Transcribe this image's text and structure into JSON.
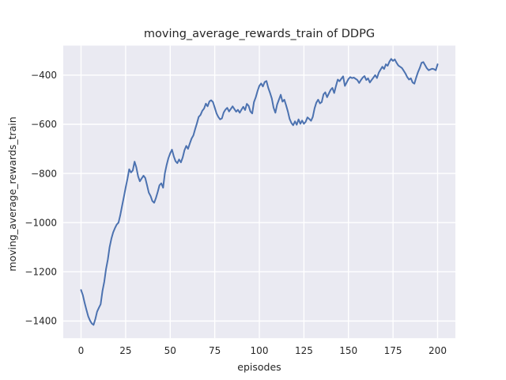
{
  "chart_data": {
    "type": "line",
    "title": "moving_average_rewards_train of DDPG",
    "xlabel": "episodes",
    "ylabel": "moving_average_rewards_train",
    "grid": true,
    "legend_position": "none",
    "xlim": [
      -10,
      210
    ],
    "ylim": [
      -1470,
      -280
    ],
    "x_ticks": [
      {
        "value": 0,
        "label": "0"
      },
      {
        "value": 25,
        "label": "25"
      },
      {
        "value": 50,
        "label": "50"
      },
      {
        "value": 75,
        "label": "75"
      },
      {
        "value": 100,
        "label": "100"
      },
      {
        "value": 125,
        "label": "125"
      },
      {
        "value": 150,
        "label": "150"
      },
      {
        "value": 175,
        "label": "175"
      },
      {
        "value": 200,
        "label": "200"
      }
    ],
    "y_ticks": [
      {
        "value": -400,
        "label": "−400"
      },
      {
        "value": -600,
        "label": "−600"
      },
      {
        "value": -800,
        "label": "−800"
      },
      {
        "value": -1000,
        "label": "−1000"
      },
      {
        "value": -1200,
        "label": "−1200"
      },
      {
        "value": -1400,
        "label": "−1400"
      }
    ],
    "colors": {
      "plot_background": "#eaeaf2",
      "figure_background": "#ffffff",
      "grid": "#ffffff",
      "text": "#262626",
      "series": "#4c72b0"
    },
    "series": [
      {
        "name": "moving_average_rewards_train",
        "color": "#4c72b0",
        "points": [
          [
            0,
            -1274
          ],
          [
            1,
            -1295
          ],
          [
            2,
            -1327
          ],
          [
            3,
            -1354
          ],
          [
            4,
            -1381
          ],
          [
            5,
            -1398
          ],
          [
            6,
            -1410
          ],
          [
            7,
            -1416
          ],
          [
            8,
            -1392
          ],
          [
            9,
            -1362
          ],
          [
            10,
            -1346
          ],
          [
            11,
            -1332
          ],
          [
            12,
            -1278
          ],
          [
            13,
            -1240
          ],
          [
            14,
            -1189
          ],
          [
            15,
            -1150
          ],
          [
            16,
            -1100
          ],
          [
            17,
            -1065
          ],
          [
            18,
            -1040
          ],
          [
            19,
            -1022
          ],
          [
            20,
            -1008
          ],
          [
            21,
            -1000
          ],
          [
            22,
            -970
          ],
          [
            23,
            -932
          ],
          [
            24,
            -895
          ],
          [
            25,
            -858
          ],
          [
            26,
            -822
          ],
          [
            27,
            -783
          ],
          [
            28,
            -796
          ],
          [
            29,
            -788
          ],
          [
            30,
            -752
          ],
          [
            31,
            -775
          ],
          [
            32,
            -812
          ],
          [
            33,
            -832
          ],
          [
            34,
            -820
          ],
          [
            35,
            -809
          ],
          [
            36,
            -818
          ],
          [
            37,
            -848
          ],
          [
            38,
            -878
          ],
          [
            39,
            -892
          ],
          [
            40,
            -912
          ],
          [
            41,
            -919
          ],
          [
            42,
            -900
          ],
          [
            43,
            -875
          ],
          [
            44,
            -848
          ],
          [
            45,
            -840
          ],
          [
            46,
            -858
          ],
          [
            47,
            -800
          ],
          [
            48,
            -765
          ],
          [
            49,
            -738
          ],
          [
            50,
            -718
          ],
          [
            51,
            -703
          ],
          [
            52,
            -730
          ],
          [
            53,
            -750
          ],
          [
            54,
            -758
          ],
          [
            55,
            -743
          ],
          [
            56,
            -755
          ],
          [
            57,
            -735
          ],
          [
            58,
            -706
          ],
          [
            59,
            -688
          ],
          [
            60,
            -700
          ],
          [
            61,
            -678
          ],
          [
            62,
            -658
          ],
          [
            63,
            -645
          ],
          [
            64,
            -620
          ],
          [
            65,
            -596
          ],
          [
            66,
            -570
          ],
          [
            67,
            -562
          ],
          [
            68,
            -545
          ],
          [
            69,
            -536
          ],
          [
            70,
            -516
          ],
          [
            71,
            -527
          ],
          [
            72,
            -507
          ],
          [
            73,
            -502
          ],
          [
            74,
            -510
          ],
          [
            75,
            -532
          ],
          [
            76,
            -556
          ],
          [
            77,
            -570
          ],
          [
            78,
            -580
          ],
          [
            79,
            -576
          ],
          [
            80,
            -552
          ],
          [
            81,
            -540
          ],
          [
            82,
            -533
          ],
          [
            83,
            -548
          ],
          [
            84,
            -538
          ],
          [
            85,
            -527
          ],
          [
            86,
            -538
          ],
          [
            87,
            -549
          ],
          [
            88,
            -541
          ],
          [
            89,
            -553
          ],
          [
            90,
            -540
          ],
          [
            91,
            -529
          ],
          [
            92,
            -542
          ],
          [
            93,
            -517
          ],
          [
            94,
            -525
          ],
          [
            95,
            -548
          ],
          [
            96,
            -556
          ],
          [
            97,
            -510
          ],
          [
            98,
            -490
          ],
          [
            99,
            -465
          ],
          [
            100,
            -444
          ],
          [
            101,
            -434
          ],
          [
            102,
            -446
          ],
          [
            103,
            -428
          ],
          [
            104,
            -424
          ],
          [
            105,
            -452
          ],
          [
            106,
            -472
          ],
          [
            107,
            -495
          ],
          [
            108,
            -532
          ],
          [
            109,
            -553
          ],
          [
            110,
            -520
          ],
          [
            111,
            -500
          ],
          [
            112,
            -480
          ],
          [
            113,
            -508
          ],
          [
            114,
            -500
          ],
          [
            115,
            -522
          ],
          [
            116,
            -548
          ],
          [
            117,
            -578
          ],
          [
            118,
            -595
          ],
          [
            119,
            -604
          ],
          [
            120,
            -588
          ],
          [
            121,
            -602
          ],
          [
            122,
            -580
          ],
          [
            123,
            -598
          ],
          [
            124,
            -585
          ],
          [
            125,
            -598
          ],
          [
            126,
            -590
          ],
          [
            127,
            -572
          ],
          [
            128,
            -578
          ],
          [
            129,
            -586
          ],
          [
            130,
            -570
          ],
          [
            131,
            -535
          ],
          [
            132,
            -512
          ],
          [
            133,
            -500
          ],
          [
            134,
            -515
          ],
          [
            135,
            -510
          ],
          [
            136,
            -478
          ],
          [
            137,
            -470
          ],
          [
            138,
            -490
          ],
          [
            139,
            -475
          ],
          [
            140,
            -460
          ],
          [
            141,
            -452
          ],
          [
            142,
            -473
          ],
          [
            143,
            -445
          ],
          [
            144,
            -418
          ],
          [
            145,
            -425
          ],
          [
            146,
            -415
          ],
          [
            147,
            -405
          ],
          [
            148,
            -444
          ],
          [
            149,
            -430
          ],
          [
            150,
            -416
          ],
          [
            151,
            -408
          ],
          [
            152,
            -412
          ],
          [
            153,
            -410
          ],
          [
            154,
            -415
          ],
          [
            155,
            -420
          ],
          [
            156,
            -432
          ],
          [
            157,
            -420
          ],
          [
            158,
            -410
          ],
          [
            159,
            -404
          ],
          [
            160,
            -420
          ],
          [
            161,
            -413
          ],
          [
            162,
            -430
          ],
          [
            163,
            -420
          ],
          [
            164,
            -410
          ],
          [
            165,
            -400
          ],
          [
            166,
            -412
          ],
          [
            167,
            -390
          ],
          [
            168,
            -378
          ],
          [
            169,
            -366
          ],
          [
            170,
            -375
          ],
          [
            171,
            -356
          ],
          [
            172,
            -362
          ],
          [
            173,
            -345
          ],
          [
            174,
            -334
          ],
          [
            175,
            -342
          ],
          [
            176,
            -336
          ],
          [
            177,
            -350
          ],
          [
            178,
            -361
          ],
          [
            179,
            -366
          ],
          [
            180,
            -371
          ],
          [
            181,
            -382
          ],
          [
            182,
            -394
          ],
          [
            183,
            -408
          ],
          [
            184,
            -418
          ],
          [
            185,
            -413
          ],
          [
            186,
            -430
          ],
          [
            187,
            -435
          ],
          [
            188,
            -410
          ],
          [
            189,
            -388
          ],
          [
            190,
            -371
          ],
          [
            191,
            -350
          ],
          [
            192,
            -347
          ],
          [
            193,
            -360
          ],
          [
            194,
            -372
          ],
          [
            195,
            -380
          ],
          [
            196,
            -377
          ],
          [
            197,
            -374
          ],
          [
            198,
            -376
          ],
          [
            199,
            -380
          ],
          [
            200,
            -356
          ]
        ]
      }
    ]
  }
}
